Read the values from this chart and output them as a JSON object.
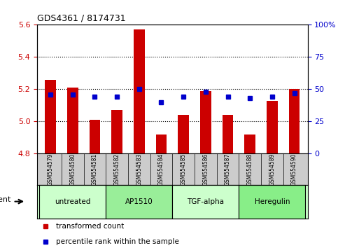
{
  "title": "GDS4361 / 8174731",
  "samples": [
    "GSM554579",
    "GSM554580",
    "GSM554581",
    "GSM554582",
    "GSM554583",
    "GSM554584",
    "GSM554585",
    "GSM554586",
    "GSM554587",
    "GSM554588",
    "GSM554589",
    "GSM554590"
  ],
  "transformed_count": [
    5.26,
    5.21,
    5.01,
    5.07,
    5.57,
    4.92,
    5.04,
    5.19,
    5.04,
    4.92,
    5.13,
    5.2
  ],
  "percentile_rank": [
    46,
    46,
    44,
    44,
    50,
    40,
    44,
    48,
    44,
    43,
    44,
    47
  ],
  "ylim": [
    4.8,
    5.6
  ],
  "yticks_left": [
    4.8,
    5.0,
    5.2,
    5.4,
    5.6
  ],
  "yticks_right": [
    0,
    25,
    50,
    75,
    100
  ],
  "bar_color": "#cc0000",
  "dot_color": "#0000cc",
  "bar_width": 0.5,
  "background_color": "#ffffff",
  "groups": [
    {
      "label": "untreated",
      "start": 0,
      "end": 3,
      "color": "#ccffcc"
    },
    {
      "label": "AP1510",
      "start": 3,
      "end": 6,
      "color": "#99ee99"
    },
    {
      "label": "TGF-alpha",
      "start": 6,
      "end": 9,
      "color": "#ccffcc"
    },
    {
      "label": "Heregulin",
      "start": 9,
      "end": 12,
      "color": "#88ee88"
    }
  ],
  "tick_label_color_left": "#cc0000",
  "tick_label_color_right": "#0000cc",
  "legend_tc_color": "#cc0000",
  "legend_pr_color": "#0000cc",
  "agent_label": "agent",
  "grid_yticks": [
    5.0,
    5.2,
    5.4
  ]
}
